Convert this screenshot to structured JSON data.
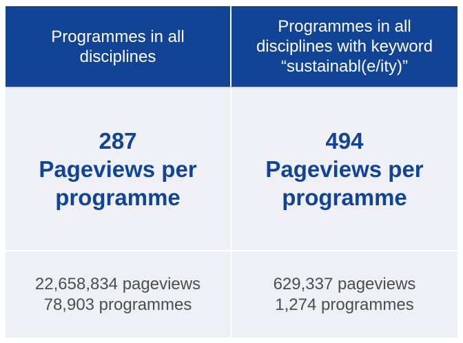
{
  "columns": [
    {
      "header": "Programmes in all disciplines",
      "header_lines": [
        "Programmes in all",
        "disciplines"
      ],
      "value": "287",
      "metric_lines": [
        "Pageviews per",
        "programme"
      ],
      "pageviews": "22,658,834 pageviews",
      "programmes": "78,903 programmes"
    },
    {
      "header": "Programmes in all disciplines with keyword “sustainabl(e/ity)”",
      "header_lines": [
        "Programmes in all",
        "disciplines with keyword",
        "“sustainabl(e/ity)”"
      ],
      "value": "494",
      "metric_lines": [
        "Pageviews per",
        "programme"
      ],
      "pageviews": "629,337 pageviews",
      "programmes": "1,274 programmes"
    }
  ],
  "colors": {
    "header_bg": "#124495",
    "header_text": "#ffffff",
    "cell_bg": "#eef0f5",
    "metric_text": "#124495",
    "detail_text": "#4d4d4d"
  }
}
